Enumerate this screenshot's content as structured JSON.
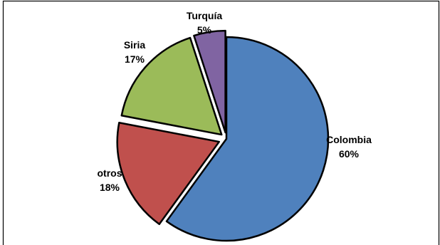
{
  "chart_data": {
    "type": "pie",
    "title": "",
    "slices": [
      {
        "label": "Colombia",
        "value": 60,
        "value_label": "60%",
        "color": "#4F81BD"
      },
      {
        "label": "otros",
        "value": 18,
        "value_label": "18%",
        "color": "#C0504D"
      },
      {
        "label": "Siria",
        "value": 17,
        "value_label": "17%",
        "color": "#9BBB59"
      },
      {
        "label": "Turquía",
        "value": 5,
        "value_label": "5%",
        "color": "#8064A2"
      }
    ],
    "exploded": true,
    "legend": "none",
    "data_labels": "outside",
    "border_color": "#000000"
  }
}
